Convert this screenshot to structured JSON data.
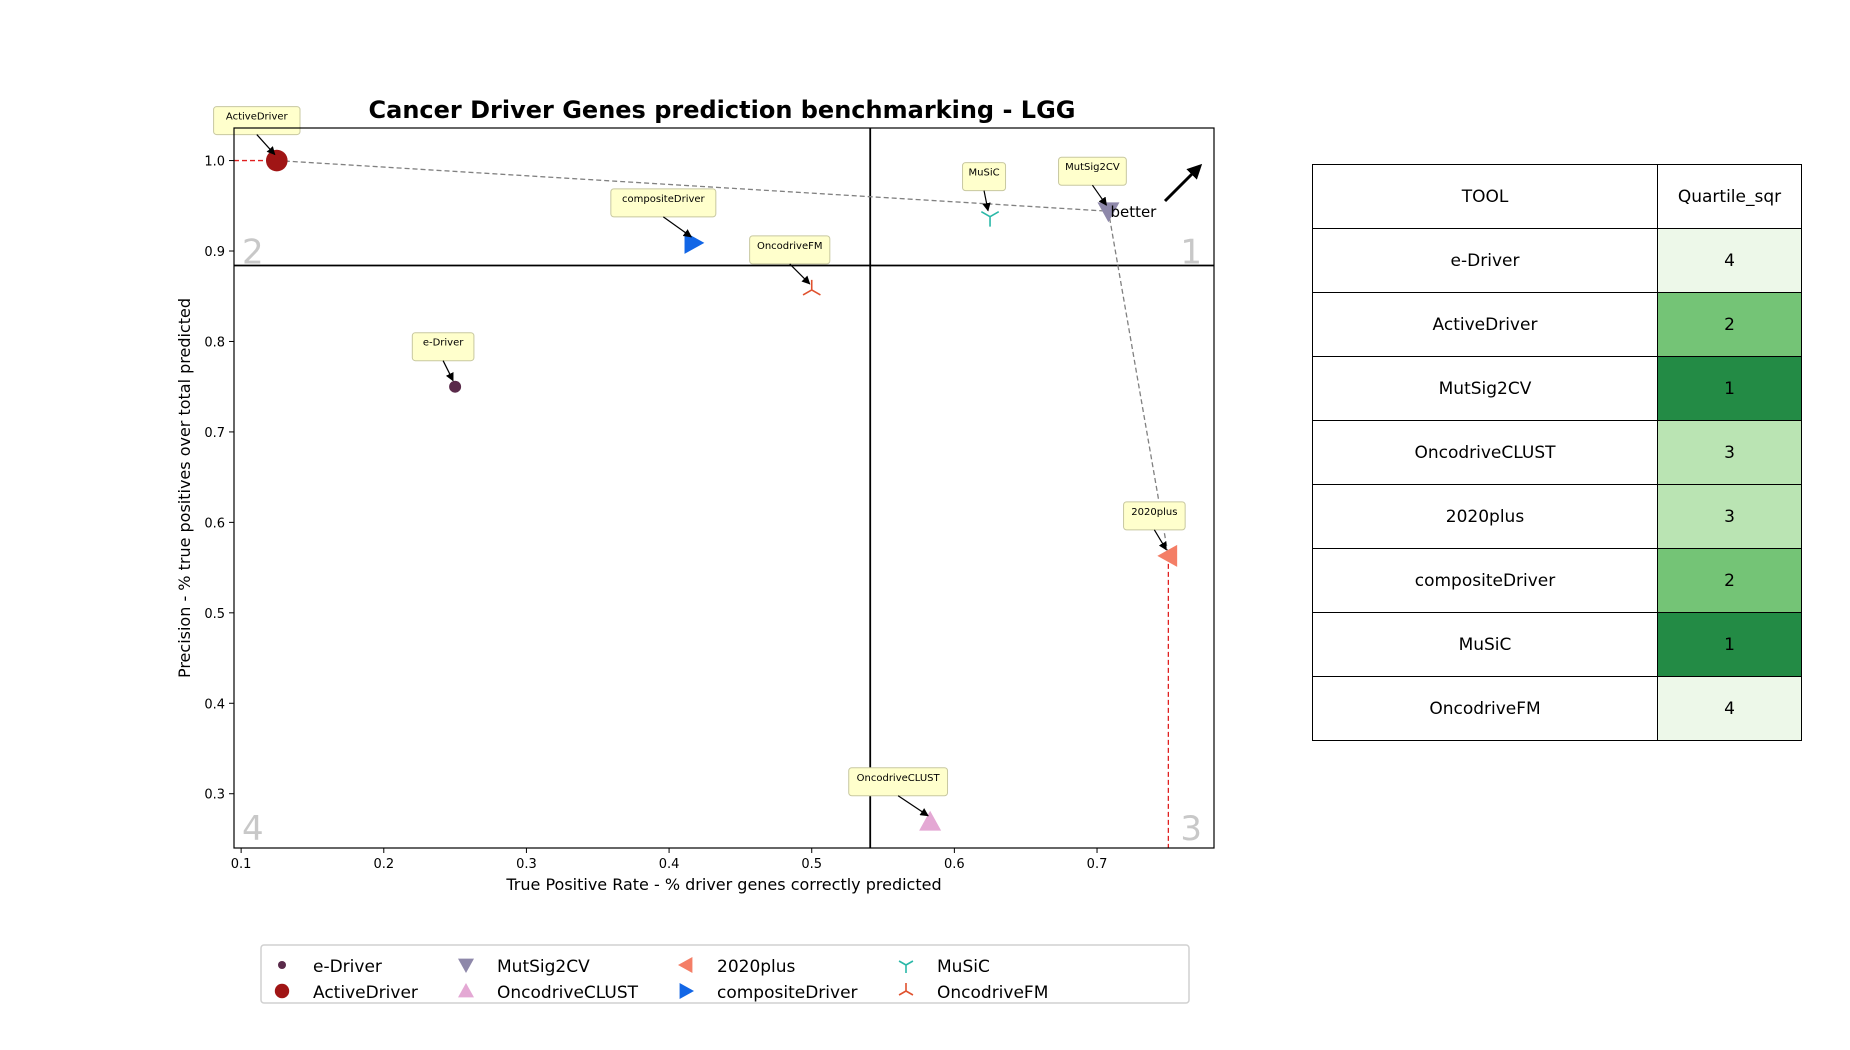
{
  "chart_data": {
    "type": "scatter",
    "title": "Cancer Driver Genes prediction benchmarking - LGG",
    "xlabel": "True Positive Rate - % driver genes correctly predicted",
    "ylabel": "Precision - % true positives over total predicted",
    "xlim": [
      0.095,
      0.782
    ],
    "ylim": [
      0.24,
      1.036
    ],
    "xticks": [
      "0.1",
      "0.2",
      "0.3",
      "0.4",
      "0.5",
      "0.6",
      "0.7"
    ],
    "yticks": [
      "0.3",
      "0.4",
      "0.5",
      "0.6",
      "0.7",
      "0.8",
      "0.9",
      "1.0"
    ],
    "quadrant_lines": {
      "x": 0.541,
      "y": 0.884
    },
    "quadrant_labels": [
      "1",
      "2",
      "3",
      "4"
    ],
    "better_label": "better",
    "grid": false,
    "legend_position": "bottom",
    "series": [
      {
        "name": "e-Driver",
        "x": 0.25,
        "y": 0.75,
        "marker": "circle-small",
        "color": "#5a2a4a"
      },
      {
        "name": "ActiveDriver",
        "x": 0.125,
        "y": 1.0,
        "marker": "circle",
        "color": "#a01515"
      },
      {
        "name": "MutSig2CV",
        "x": 0.708,
        "y": 0.944,
        "marker": "triangle-down",
        "color": "#8e88aa"
      },
      {
        "name": "OncodriveCLUST",
        "x": 0.583,
        "y": 0.269,
        "marker": "triangle-up",
        "color": "#e4a8d4"
      },
      {
        "name": "2020plus",
        "x": 0.75,
        "y": 0.563,
        "marker": "triangle-left",
        "color": "#f47e66"
      },
      {
        "name": "compositeDriver",
        "x": 0.417,
        "y": 0.909,
        "marker": "triangle-right",
        "color": "#1266e6"
      },
      {
        "name": "MuSiC",
        "x": 0.625,
        "y": 0.938,
        "marker": "tri-down",
        "color": "#2ab8a8"
      },
      {
        "name": "OncodriveFM",
        "x": 0.5,
        "y": 0.857,
        "marker": "tri-up",
        "color": "#e0522f"
      }
    ],
    "pareto_front": [
      "ActiveDriver",
      "MutSig2CV",
      "2020plus"
    ]
  },
  "table": {
    "headers": [
      "TOOL",
      "Quartile_sqr"
    ],
    "rows": [
      {
        "tool": "e-Driver",
        "quartile": "4",
        "color": "#edf8e9"
      },
      {
        "tool": "ActiveDriver",
        "quartile": "2",
        "color": "#74c476"
      },
      {
        "tool": "MutSig2CV",
        "quartile": "1",
        "color": "#238b45"
      },
      {
        "tool": "OncodriveCLUST",
        "quartile": "3",
        "color": "#bae4b3"
      },
      {
        "tool": "2020plus",
        "quartile": "3",
        "color": "#bae4b3"
      },
      {
        "tool": "compositeDriver",
        "quartile": "2",
        "color": "#74c476"
      },
      {
        "tool": "MuSiC",
        "quartile": "1",
        "color": "#238b45"
      },
      {
        "tool": "OncodriveFM",
        "quartile": "4",
        "color": "#edf8e9"
      }
    ]
  }
}
